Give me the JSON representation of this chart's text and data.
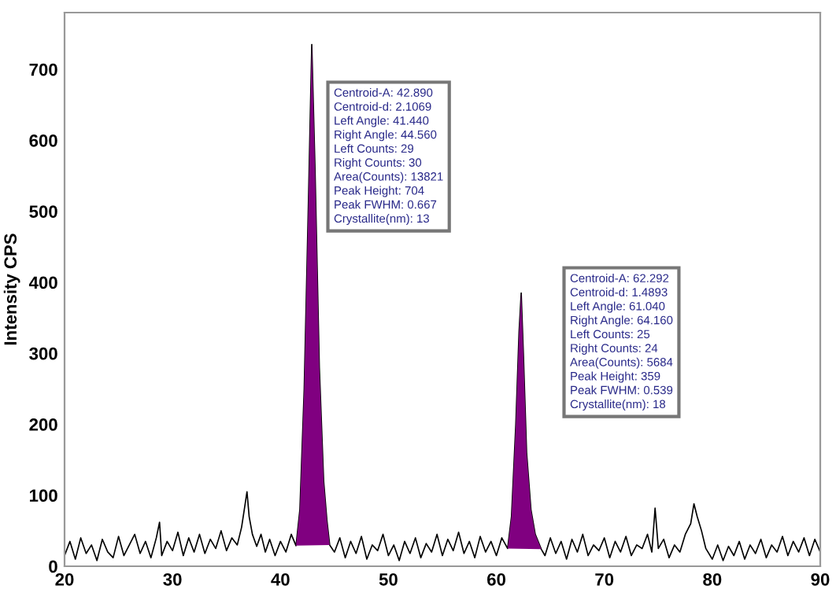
{
  "chart_data": {
    "type": "line",
    "ylabel": "Intensity CPS",
    "xlim": [
      20,
      90
    ],
    "ylim": [
      0,
      780
    ],
    "xticks": [
      20,
      30,
      40,
      50,
      60,
      70,
      80,
      90
    ],
    "yticks": [
      0,
      100,
      200,
      300,
      400,
      500,
      600,
      700
    ],
    "grid": false,
    "marker": "none",
    "line_style": "solid",
    "annotations": [
      "Centroid-A: 42.890\nCentroid-d: 2.1069\nLeft Angle: 41.440\nRight Angle: 44.560\nLeft Counts: 29\nRight Counts: 30\nArea(Counts): 13821\nPeak Height: 704\nPeak FWHM: 0.667\nCrystallite(nm): 13",
      "Centroid-A: 62.292\nCentroid-d: 1.4893\nLeft Angle: 61.040\nRight Angle: 64.160\nLeft Counts: 25\nRight Counts: 24\nArea(Counts): 5684\nPeak Height: 359\nPeak FWHM: 0.539\nCrystallite(nm): 18"
    ],
    "series": [
      {
        "color": "#000000",
        "x": [
          20,
          20.5,
          21,
          21.5,
          22,
          22.5,
          23,
          23.5,
          24,
          24.5,
          25,
          25.5,
          26,
          26.5,
          27,
          27.5,
          28,
          28.5,
          28.8,
          29,
          29.5,
          30,
          30.5,
          31,
          31.5,
          32,
          32.5,
          33,
          33.5,
          34,
          34.5,
          35,
          35.5,
          36,
          36.4,
          36.7,
          36.9,
          37.1,
          37.4,
          37.8,
          38.2,
          38.6,
          39,
          39.5,
          40,
          40.5,
          41,
          41.44,
          41.8,
          42.2,
          42.6,
          42.9,
          43.2,
          43.6,
          44,
          44.3,
          44.56,
          45,
          45.5,
          46,
          46.5,
          47,
          47.5,
          48,
          48.5,
          49,
          49.5,
          50,
          50.5,
          51,
          51.5,
          52,
          52.5,
          53,
          53.5,
          54,
          54.5,
          55,
          55.5,
          56,
          56.5,
          57,
          57.5,
          58,
          58.5,
          59,
          59.5,
          60,
          60.5,
          61.04,
          61.4,
          61.8,
          62.1,
          62.3,
          62.5,
          62.8,
          63.2,
          63.6,
          64.16,
          64.5,
          65,
          65.5,
          66,
          66.5,
          67,
          67.5,
          68,
          68.5,
          69,
          69.5,
          70,
          70.5,
          71,
          71.5,
          72,
          72.5,
          73,
          73.5,
          74,
          74.4,
          74.7,
          75,
          75.5,
          76,
          76.5,
          77,
          77.5,
          78,
          78.3,
          78.6,
          79,
          79.4,
          80,
          80.5,
          81,
          81.5,
          82,
          82.5,
          83,
          83.5,
          84,
          84.5,
          85,
          85.5,
          86,
          86.5,
          87,
          87.5,
          88,
          88.5,
          89,
          89.5,
          90
        ],
        "values": [
          15,
          35,
          10,
          40,
          18,
          30,
          8,
          38,
          20,
          12,
          42,
          15,
          30,
          45,
          18,
          35,
          12,
          40,
          62,
          15,
          35,
          22,
          48,
          15,
          40,
          20,
          45,
          18,
          38,
          25,
          50,
          22,
          40,
          30,
          55,
          85,
          105,
          70,
          45,
          28,
          45,
          20,
          38,
          15,
          35,
          20,
          45,
          29,
          80,
          250,
          520,
          735,
          560,
          280,
          120,
          65,
          30,
          20,
          40,
          12,
          35,
          18,
          42,
          10,
          30,
          22,
          45,
          15,
          30,
          8,
          35,
          18,
          40,
          12,
          32,
          20,
          45,
          15,
          38,
          22,
          48,
          18,
          35,
          12,
          42,
          20,
          35,
          15,
          40,
          25,
          70,
          200,
          330,
          385,
          300,
          160,
          80,
          45,
          24,
          15,
          40,
          18,
          35,
          10,
          38,
          20,
          45,
          15,
          30,
          22,
          40,
          12,
          35,
          20,
          42,
          15,
          30,
          25,
          45,
          20,
          82,
          25,
          38,
          12,
          30,
          20,
          45,
          60,
          88,
          70,
          50,
          25,
          10,
          30,
          8,
          28,
          15,
          35,
          10,
          30,
          18,
          38,
          12,
          30,
          20,
          42,
          15,
          35,
          20,
          40,
          15,
          38,
          20
        ]
      },
      {
        "type": "area",
        "color": "#800080",
        "x": [
          41.44,
          41.8,
          42.2,
          42.6,
          42.9,
          43.2,
          43.6,
          44,
          44.3,
          44.56
        ],
        "values": [
          29,
          80,
          250,
          520,
          735,
          560,
          280,
          120,
          65,
          30
        ]
      },
      {
        "type": "area",
        "color": "#800080",
        "x": [
          61.04,
          61.4,
          61.8,
          62.1,
          62.3,
          62.5,
          62.8,
          63.2,
          63.6,
          64.16
        ],
        "values": [
          25,
          70,
          200,
          330,
          385,
          300,
          160,
          80,
          45,
          24
        ]
      }
    ]
  }
}
